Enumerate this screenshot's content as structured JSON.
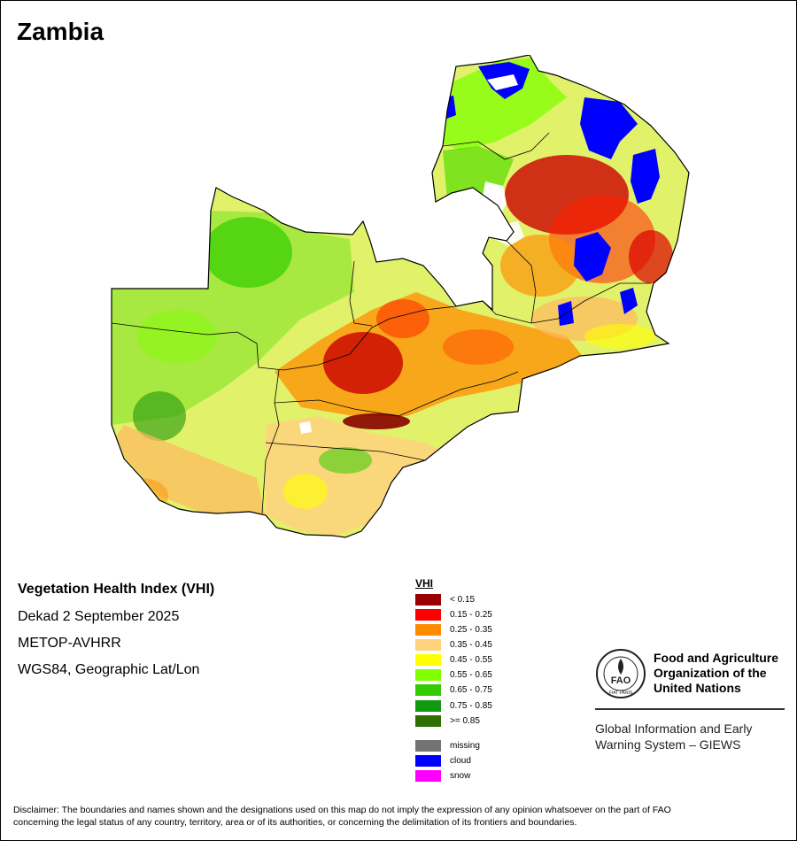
{
  "title": "Zambia",
  "map_info": {
    "product": "Vegetation Health Index (VHI)",
    "period": "Dekad 2 September 2025",
    "sensor": "METOP-AVHRR",
    "projection": "WGS84, Geographic Lat/Lon"
  },
  "legend": {
    "title": "VHI",
    "classes": [
      {
        "label": "< 0.15",
        "color": "#9b0000"
      },
      {
        "label": "0.15 - 0.25",
        "color": "#ff0000"
      },
      {
        "label": "0.25 - 0.35",
        "color": "#ff8c00"
      },
      {
        "label": "0.35 - 0.45",
        "color": "#ffd27f"
      },
      {
        "label": "0.45 - 0.55",
        "color": "#ffff00"
      },
      {
        "label": "0.55 - 0.65",
        "color": "#7fff00"
      },
      {
        "label": "0.65 - 0.75",
        "color": "#33cc00"
      },
      {
        "label": "0.75 - 0.85",
        "color": "#119911"
      },
      {
        "label": ">= 0.85",
        "color": "#2e6e00"
      }
    ],
    "other": [
      {
        "label": "missing",
        "color": "#737373"
      },
      {
        "label": "cloud",
        "color": "#0000ff"
      },
      {
        "label": "snow",
        "color": "#ff00ff"
      }
    ]
  },
  "fao": {
    "name_line1": "Food and Agriculture",
    "name_line2": "Organization of the",
    "name_line3": "United Nations",
    "logo_text": "FAO",
    "motto": "FIAT PANIS",
    "giews_line1": "Global Information and Early",
    "giews_line2": "Warning System – GIEWS"
  },
  "disclaimer_line1": "Disclaimer: The boundaries and names shown and the designations used on this map do not imply the expression of any opinion whatsoever on the part of FAO",
  "disclaimer_line2": "concerning the legal status of any country, territory, area or of its authorities, or concerning the delimitation of its frontiers and boundaries."
}
